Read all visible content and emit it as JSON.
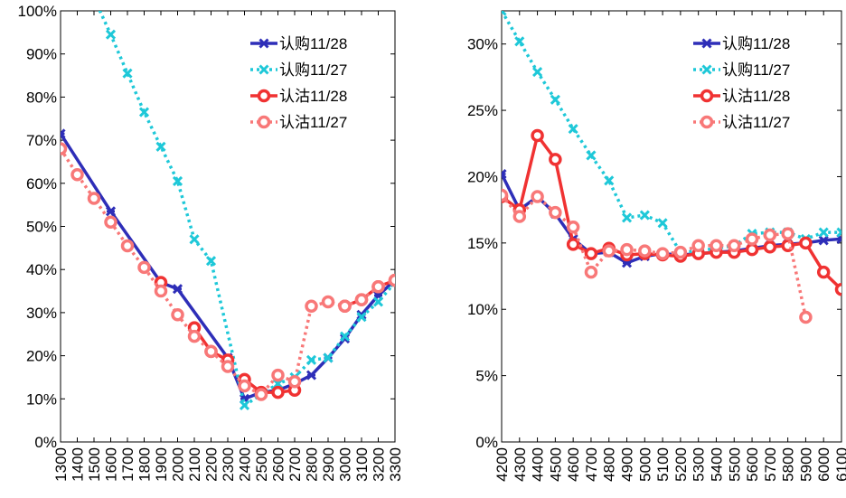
{
  "chart_data": [
    {
      "type": "line",
      "ylim": [
        0,
        100
      ],
      "yticks": [
        "0%",
        "10%",
        "20%",
        "30%",
        "40%",
        "50%",
        "60%",
        "70%",
        "80%",
        "90%",
        "100%"
      ],
      "xticks": [
        "1300",
        "1400",
        "1500",
        "1600",
        "1700",
        "1800",
        "1900",
        "2000",
        "2100",
        "2200",
        "2300",
        "2400",
        "2500",
        "2600",
        "2700",
        "2800",
        "2900",
        "3000",
        "3100",
        "3200",
        "3300"
      ],
      "grid": false,
      "legend_position": "top-right",
      "series": [
        {
          "name": "认购11/28",
          "color": "#2e2eb8",
          "style": "solid-star",
          "points": [
            [
              0,
              71.5
            ],
            [
              3,
              53.5
            ],
            [
              6,
              37
            ],
            [
              7,
              35.5
            ],
            [
              10,
              19.5
            ],
            [
              11,
              10
            ],
            [
              12,
              11.5
            ],
            [
              13,
              12
            ],
            [
              14,
              13.5
            ],
            [
              15,
              15.5
            ],
            [
              16,
              19.5
            ],
            [
              17,
              24
            ],
            [
              18,
              29.5
            ],
            [
              19,
              34
            ],
            [
              20,
              37.5
            ]
          ]
        },
        {
          "name": "认购11/27",
          "color": "#1ec8d8",
          "style": "dotted-x",
          "points": [
            [
              1,
              101.5
            ],
            [
              2,
              103
            ],
            [
              3,
              94.5
            ],
            [
              4,
              85.5
            ],
            [
              5,
              76.5
            ],
            [
              6,
              68.5
            ],
            [
              7,
              60.5
            ],
            [
              8,
              47
            ],
            [
              9,
              42
            ],
            [
              11,
              8.5
            ],
            [
              12,
              11
            ],
            [
              13,
              13.5
            ],
            [
              14,
              15
            ],
            [
              15,
              19
            ],
            [
              16,
              19.5
            ],
            [
              17,
              24.5
            ],
            [
              18,
              29
            ],
            [
              19,
              32.5
            ],
            [
              20,
              37
            ]
          ]
        },
        {
          "name": "认沽11/28",
          "color": "#f03232",
          "style": "solid-circle",
          "segments": [
            [
              [
                6,
                37
              ]
            ],
            [
              [
                8,
                26.5
              ],
              [
                9,
                21
              ],
              [
                10,
                19
              ]
            ],
            [
              [
                11,
                14.5
              ],
              [
                12,
                11.5
              ],
              [
                13,
                11.5
              ],
              [
                14,
                12
              ]
            ],
            [
              [
                17,
                31.5
              ],
              [
                18,
                33
              ],
              [
                19,
                36
              ],
              [
                20,
                37.5
              ]
            ]
          ]
        },
        {
          "name": "认沽11/27",
          "color": "#f87878",
          "style": "dotted-circle",
          "points": [
            [
              0,
              68
            ],
            [
              1,
              62
            ],
            [
              2,
              56.5
            ],
            [
              3,
              51
            ],
            [
              4,
              45.5
            ],
            [
              5,
              40.5
            ],
            [
              6,
              35
            ],
            [
              7,
              29.5
            ],
            [
              8,
              24.5
            ],
            [
              9,
              21
            ],
            [
              10,
              17.5
            ],
            [
              11,
              13
            ],
            [
              12,
              11
            ],
            [
              13,
              15.5
            ],
            [
              14,
              14
            ],
            [
              15,
              31.5
            ],
            [
              16,
              32.5
            ],
            [
              17,
              31.5
            ],
            [
              18,
              33
            ],
            [
              19,
              36
            ],
            [
              20,
              37.5
            ]
          ]
        }
      ]
    },
    {
      "type": "line",
      "ylim": [
        0,
        32.5
      ],
      "yticks": [
        "0%",
        "5%",
        "10%",
        "15%",
        "20%",
        "25%",
        "30%"
      ],
      "xticks": [
        "4200",
        "4300",
        "4400",
        "4500",
        "4600",
        "4700",
        "4800",
        "4900",
        "5000",
        "5100",
        "5200",
        "5300",
        "5400",
        "5500",
        "5600",
        "5700",
        "5800",
        "5900",
        "6000",
        "6100"
      ],
      "grid": false,
      "legend_position": "top-right",
      "series": [
        {
          "name": "认购11/28",
          "color": "#2e2eb8",
          "style": "solid-star",
          "points": [
            [
              0,
              20.2
            ],
            [
              1,
              17.5
            ],
            [
              2,
              18.5
            ],
            [
              3,
              17.2
            ],
            [
              4,
              15.3
            ],
            [
              5,
              14.2
            ],
            [
              6,
              14.3
            ],
            [
              7,
              13.5
            ],
            [
              8,
              14.0
            ],
            [
              9,
              14.2
            ],
            [
              10,
              14.1
            ],
            [
              11,
              14.2
            ],
            [
              12,
              14.3
            ],
            [
              13,
              14.4
            ],
            [
              14,
              14.6
            ],
            [
              15,
              14.8
            ],
            [
              16,
              14.9
            ],
            [
              17,
              15.0
            ],
            [
              18,
              15.2
            ],
            [
              19,
              15.3
            ]
          ]
        },
        {
          "name": "认购11/27",
          "color": "#1ec8d8",
          "style": "dotted-x",
          "points": [
            [
              0,
              32.5
            ],
            [
              1,
              30.2
            ],
            [
              2,
              27.9
            ],
            [
              3,
              25.8
            ],
            [
              4,
              23.6
            ],
            [
              5,
              21.6
            ],
            [
              6,
              19.7
            ],
            [
              7,
              16.9
            ],
            [
              8,
              17.1
            ],
            [
              9,
              16.5
            ],
            [
              10,
              14.3
            ],
            [
              11,
              14.4
            ],
            [
              12,
              14.6
            ],
            [
              13,
              14.8
            ],
            [
              14,
              15.7
            ],
            [
              15,
              15.8
            ],
            [
              16,
              15.8
            ],
            [
              17,
              15.3
            ],
            [
              18,
              15.8
            ],
            [
              19,
              15.8
            ]
          ]
        },
        {
          "name": "认沽11/28",
          "color": "#f03232",
          "style": "solid-circle",
          "points": [
            [
              0,
              18.5
            ],
            [
              1,
              17.5
            ],
            [
              2,
              23.1
            ],
            [
              3,
              21.3
            ],
            [
              4,
              14.9
            ],
            [
              5,
              14.2
            ],
            [
              6,
              14.6
            ],
            [
              7,
              14.1
            ],
            [
              8,
              14.2
            ],
            [
              9,
              14.1
            ],
            [
              10,
              14.0
            ],
            [
              11,
              14.2
            ],
            [
              12,
              14.3
            ],
            [
              13,
              14.3
            ],
            [
              14,
              14.5
            ],
            [
              15,
              14.7
            ],
            [
              16,
              14.8
            ],
            [
              17,
              15.0
            ],
            [
              18,
              12.8
            ],
            [
              19,
              11.5
            ]
          ]
        },
        {
          "name": "认沽11/27",
          "color": "#f87878",
          "style": "dotted-circle",
          "points": [
            [
              0,
              18.6
            ],
            [
              1,
              17.0
            ],
            [
              2,
              18.5
            ],
            [
              3,
              17.3
            ],
            [
              4,
              16.2
            ],
            [
              5,
              12.8
            ],
            [
              6,
              14.4
            ],
            [
              7,
              14.5
            ],
            [
              8,
              14.4
            ],
            [
              9,
              14.2
            ],
            [
              10,
              14.3
            ],
            [
              11,
              14.8
            ],
            [
              12,
              14.8
            ],
            [
              13,
              14.8
            ],
            [
              14,
              15.3
            ],
            [
              15,
              15.6
            ],
            [
              16,
              15.7
            ],
            [
              17,
              9.4
            ]
          ]
        }
      ]
    }
  ]
}
